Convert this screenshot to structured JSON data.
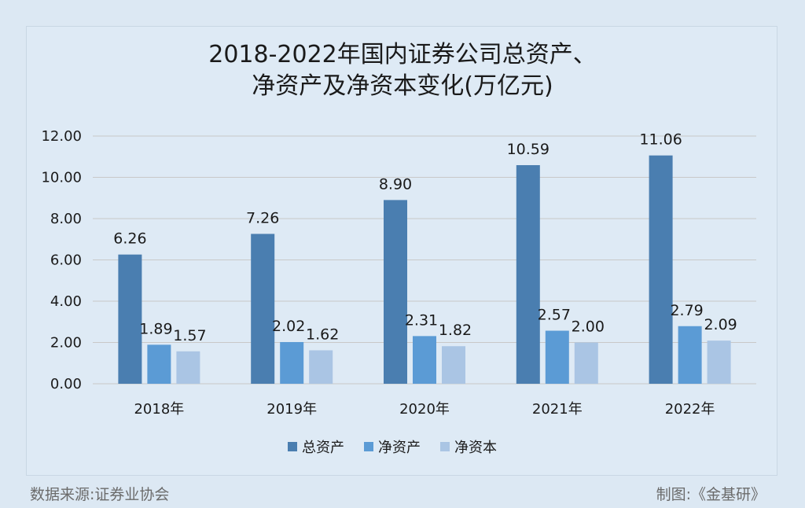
{
  "title_line1": "2018-2022年国内证券公司总资产、",
  "title_line2": "净资产及净资本变化(万亿元)",
  "source": "数据来源:证券业协会",
  "credit": "制图:《金基研》",
  "colors": {
    "series": [
      "#4a7eb0",
      "#5b9bd5",
      "#aac5e4"
    ],
    "grid": "#c8c8c8"
  },
  "chart_data": {
    "type": "bar",
    "categories": [
      "2018年",
      "2019年",
      "2020年",
      "2021年",
      "2022年"
    ],
    "series": [
      {
        "name": "总资产",
        "values": [
          6.26,
          7.26,
          8.9,
          10.59,
          11.06
        ],
        "labels": [
          "6.26",
          "7.26",
          "8.90",
          "10.59",
          "11.06"
        ]
      },
      {
        "name": "净资产",
        "values": [
          1.89,
          2.02,
          2.31,
          2.57,
          2.79
        ],
        "labels": [
          "1.89",
          "2.02",
          "2.31",
          "2.57",
          "2.79"
        ]
      },
      {
        "name": "净资本",
        "values": [
          1.57,
          1.62,
          1.82,
          2.0,
          2.09
        ],
        "labels": [
          "1.57",
          "1.62",
          "1.82",
          "2.00",
          "2.09"
        ]
      }
    ],
    "yticks": [
      "0.00",
      "2.00",
      "4.00",
      "6.00",
      "8.00",
      "10.00",
      "12.00"
    ],
    "ylim": [
      0,
      12
    ],
    "grid": true,
    "legend": "bottom"
  }
}
